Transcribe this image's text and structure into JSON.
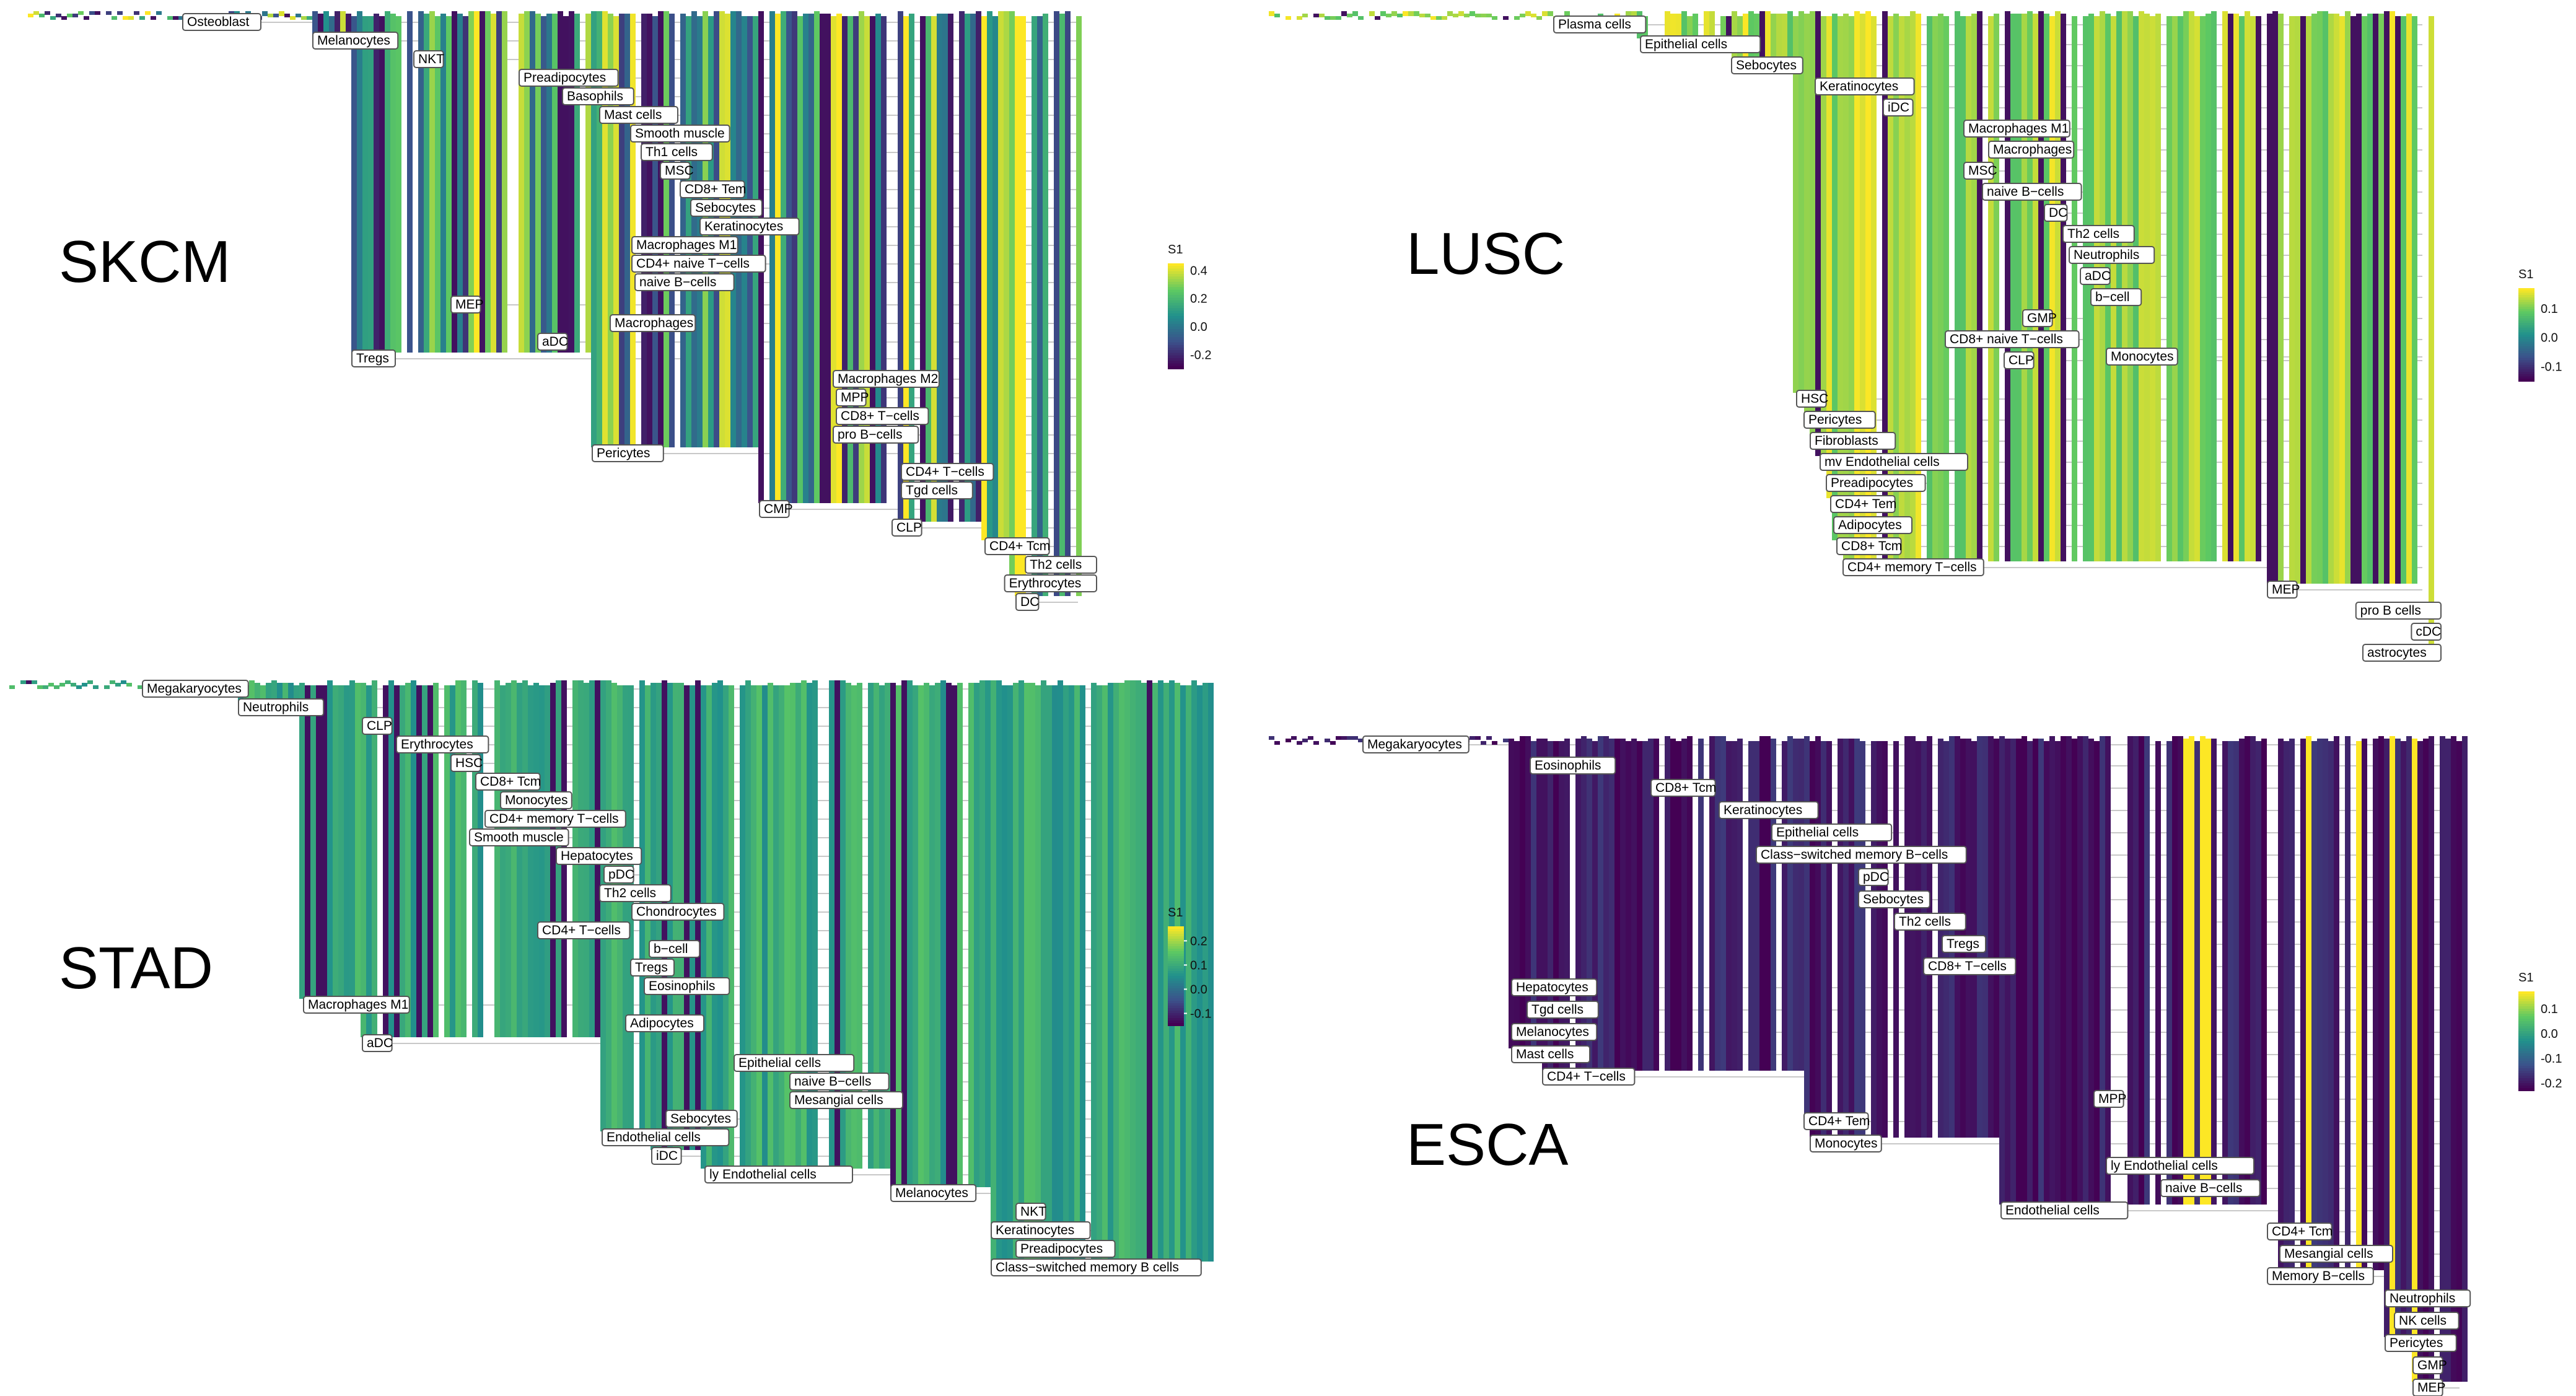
{
  "chart_data": [
    {
      "type": "heatmap",
      "title": "SKCM",
      "legend": {
        "title": "S1",
        "ticks": [
          "0.4",
          "0.2",
          "0.0",
          "-0.2"
        ],
        "tick_values": [
          0.4,
          0.2,
          0.0,
          -0.2
        ],
        "range": [
          -0.3,
          0.45
        ]
      },
      "labels": [
        "Osteoblast",
        "Melanocytes",
        "NKT",
        "Preadipocytes",
        "Basophils",
        "Mast cells",
        "Smooth muscle",
        "Th1 cells",
        "MSC",
        "CD8+ Tem",
        "Sebocytes",
        "Keratinocytes",
        "Macrophages M1",
        "CD4+ naive T−cells",
        "naive B−cells",
        "MEP",
        "Macrophages",
        "aDC",
        "Tregs",
        "Macrophages M2",
        "MPP",
        "CD8+ T−cells",
        "pro B−cells",
        "Pericytes",
        "CD4+ T−cells",
        "Tgd cells",
        "CMP",
        "CLP",
        "CD4+ Tcm",
        "Th2 cells",
        "Erythrocytes",
        "DC"
      ]
    },
    {
      "type": "heatmap",
      "title": "LUSC",
      "legend": {
        "title": "S1",
        "ticks": [
          "0.1",
          "0.0",
          "-0.1"
        ],
        "tick_values": [
          0.1,
          0.0,
          -0.1
        ],
        "range": [
          -0.15,
          0.17
        ]
      },
      "labels": [
        "Plasma cells",
        "Epithelial cells",
        "Sebocytes",
        "Keratinocytes",
        "iDC",
        "Macrophages M1",
        "Macrophages",
        "MSC",
        "naive B−cells",
        "DC",
        "Th2 cells",
        "Neutrophils",
        "aDC",
        "b−cell",
        "GMP",
        "CD8+ naive T−cells",
        "CLP",
        "Monocytes",
        "HSC",
        "Pericytes",
        "Fibroblasts",
        "mv Endothelial cells",
        "Preadipocytes",
        "CD4+ Tem",
        "Adipocytes",
        "CD8+ Tcm",
        "CD4+ memory T−cells",
        "MEP",
        "pro B cells",
        "cDC",
        "astrocytes"
      ]
    },
    {
      "type": "heatmap",
      "title": "STAD",
      "legend": {
        "title": "S1",
        "ticks": [
          "0.2",
          "0.1",
          "0.0",
          "-0.1"
        ],
        "tick_values": [
          0.2,
          0.1,
          0.0,
          -0.1
        ],
        "range": [
          -0.15,
          0.26
        ]
      },
      "labels": [
        "Megakaryocytes",
        "Neutrophils",
        "CLP",
        "Erythrocytes",
        "HSC",
        "CD8+ Tcm",
        "Monocytes",
        "CD4+ memory T−cells",
        "Smooth muscle",
        "Hepatocytes",
        "pDC",
        "Th2 cells",
        "Chondrocytes",
        "CD4+ T−cells",
        "b−cell",
        "Tregs",
        "Eosinophils",
        "Macrophages M1",
        "Adipocytes",
        "aDC",
        "Epithelial cells",
        "naive B−cells",
        "Mesangial cells",
        "Sebocytes",
        "Endothelial cells",
        "iDC",
        "ly Endothelial cells",
        "Melanocytes",
        "NKT",
        "Keratinocytes",
        "Preadipocytes",
        "Class−switched memory B cells"
      ]
    },
    {
      "type": "heatmap",
      "title": "ESCA",
      "legend": {
        "title": "S1",
        "ticks": [
          "0.1",
          "0.0",
          "-0.1",
          "-0.2"
        ],
        "tick_values": [
          0.1,
          0.0,
          -0.1,
          -0.2
        ],
        "range": [
          -0.23,
          0.17
        ]
      },
      "labels": [
        "Megakaryocytes",
        "Eosinophils",
        "CD8+ Tcm",
        "Keratinocytes",
        "Epithelial cells",
        "Class−switched memory B−cells",
        "pDC",
        "Sebocytes",
        "Th2 cells",
        "Tregs",
        "CD8+ T−cells",
        "Hepatocytes",
        "Tgd cells",
        "Melanocytes",
        "Mast cells",
        "CD4+ T−cells",
        "MPP",
        "CD4+ Tem",
        "Monocytes",
        "Endothelial cells",
        "ly Endothelial cells",
        "naive B−cells",
        "CD4+ Tcm",
        "Mesangial cells",
        "Memory B−cells",
        "Neutrophils",
        "NK cells",
        "Pericytes",
        "GMP",
        "MEP"
      ]
    }
  ]
}
